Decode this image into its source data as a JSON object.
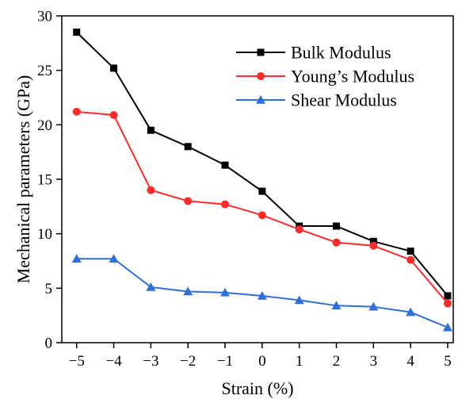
{
  "chart_data": {
    "type": "line",
    "xlabel": "Strain (%)",
    "ylabel": "Mechanical parameters (GPa)",
    "x": [
      -5,
      -4,
      -3,
      -2,
      -1,
      0,
      1,
      2,
      3,
      4,
      5
    ],
    "x_tick_labels": [
      "−5",
      "−4",
      "−3",
      "−2",
      "−1",
      "0",
      "1",
      "2",
      "3",
      "4",
      "5"
    ],
    "xlim": [
      -5.4,
      5.15
    ],
    "ylim": [
      0,
      30
    ],
    "y_ticks": [
      0,
      5,
      10,
      15,
      20,
      25,
      30
    ],
    "y_tick_labels": [
      "0",
      "5",
      "10",
      "15",
      "20",
      "25",
      "30"
    ],
    "grid": false,
    "legend_position": "top-right",
    "series": [
      {
        "name": "Bulk Modulus",
        "color": "#000000",
        "marker": "square",
        "values": [
          28.5,
          25.2,
          19.5,
          18.0,
          16.3,
          13.9,
          10.7,
          10.7,
          9.3,
          8.4,
          4.3
        ]
      },
      {
        "name": "Young’s Modulus",
        "color": "#ff2a2a",
        "marker": "circle",
        "values": [
          21.2,
          20.9,
          14.0,
          13.0,
          12.7,
          11.7,
          10.4,
          9.2,
          8.9,
          7.6,
          3.6
        ]
      },
      {
        "name": "Shear Modulus",
        "color": "#2f6fdc",
        "marker": "triangle",
        "values": [
          7.7,
          7.7,
          5.1,
          4.7,
          4.6,
          4.3,
          3.9,
          3.4,
          3.3,
          2.8,
          1.4
        ]
      }
    ]
  }
}
